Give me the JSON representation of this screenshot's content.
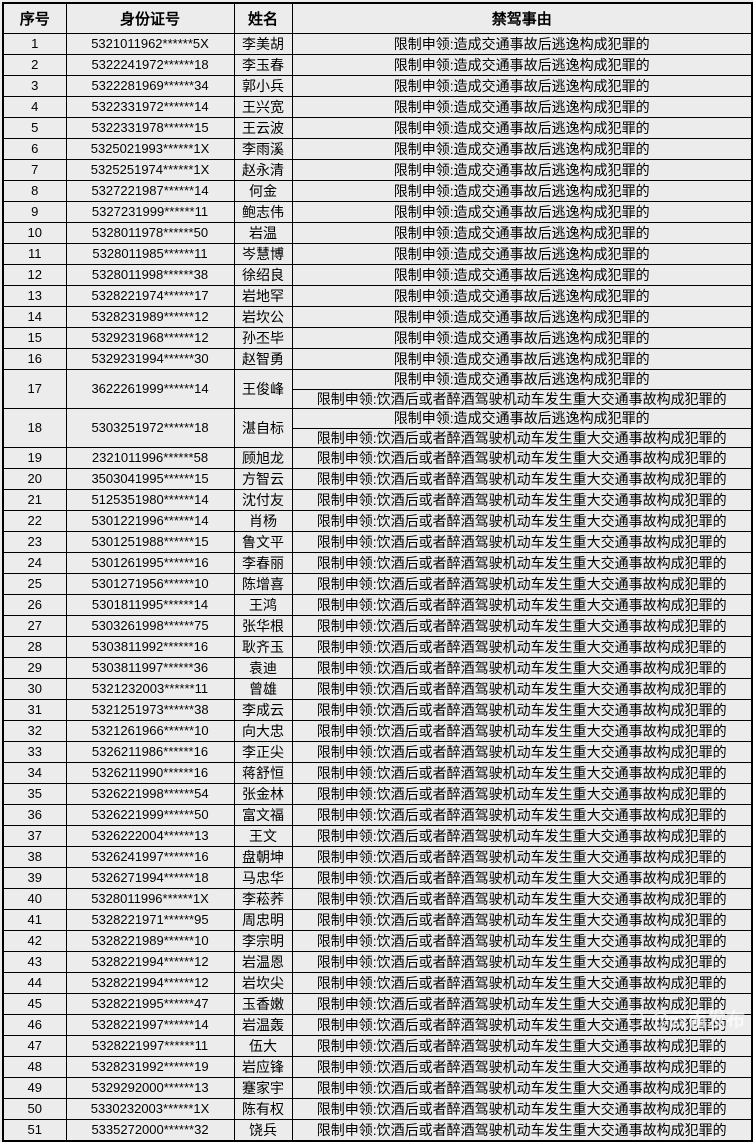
{
  "table": {
    "headers": [
      "序号",
      "身份证号",
      "姓名",
      "禁驾事由"
    ],
    "reason_types": {
      "hit_and_run": "限制申领:造成交通事故后逃逸构成犯罪的",
      "drunk_driving": "限制申领:饮酒后或者醉酒驾驶机动车发生重大交通事故构成犯罪的"
    },
    "rows": [
      {
        "index": "1",
        "id_number": "5321011962******5X",
        "name": "李美胡",
        "reasons": [
          "限制申领:造成交通事故后逃逸构成犯罪的"
        ]
      },
      {
        "index": "2",
        "id_number": "5322241972******18",
        "name": "李玉春",
        "reasons": [
          "限制申领:造成交通事故后逃逸构成犯罪的"
        ]
      },
      {
        "index": "3",
        "id_number": "5322281969******34",
        "name": "郭小兵",
        "reasons": [
          "限制申领:造成交通事故后逃逸构成犯罪的"
        ]
      },
      {
        "index": "4",
        "id_number": "5322331972******14",
        "name": "王兴宽",
        "reasons": [
          "限制申领:造成交通事故后逃逸构成犯罪的"
        ]
      },
      {
        "index": "5",
        "id_number": "5322331978******15",
        "name": "王云波",
        "reasons": [
          "限制申领:造成交通事故后逃逸构成犯罪的"
        ]
      },
      {
        "index": "6",
        "id_number": "5325021993******1X",
        "name": "李雨溪",
        "reasons": [
          "限制申领:造成交通事故后逃逸构成犯罪的"
        ]
      },
      {
        "index": "7",
        "id_number": "5325251974******1X",
        "name": "赵永清",
        "reasons": [
          "限制申领:造成交通事故后逃逸构成犯罪的"
        ]
      },
      {
        "index": "8",
        "id_number": "5327221987******14",
        "name": "何金",
        "reasons": [
          "限制申领:造成交通事故后逃逸构成犯罪的"
        ]
      },
      {
        "index": "9",
        "id_number": "5327231999******11",
        "name": "鲍志伟",
        "reasons": [
          "限制申领:造成交通事故后逃逸构成犯罪的"
        ]
      },
      {
        "index": "10",
        "id_number": "5328011978******50",
        "name": "岩温",
        "reasons": [
          "限制申领:造成交通事故后逃逸构成犯罪的"
        ]
      },
      {
        "index": "11",
        "id_number": "5328011985******11",
        "name": "岑慧博",
        "reasons": [
          "限制申领:造成交通事故后逃逸构成犯罪的"
        ]
      },
      {
        "index": "12",
        "id_number": "5328011998******38",
        "name": "徐绍良",
        "reasons": [
          "限制申领:造成交通事故后逃逸构成犯罪的"
        ]
      },
      {
        "index": "13",
        "id_number": "5328221974******17",
        "name": "岩地罕",
        "reasons": [
          "限制申领:造成交通事故后逃逸构成犯罪的"
        ]
      },
      {
        "index": "14",
        "id_number": "5328231989******12",
        "name": "岩坎公",
        "reasons": [
          "限制申领:造成交通事故后逃逸构成犯罪的"
        ]
      },
      {
        "index": "15",
        "id_number": "5329231968******12",
        "name": "孙丕毕",
        "reasons": [
          "限制申领:造成交通事故后逃逸构成犯罪的"
        ]
      },
      {
        "index": "16",
        "id_number": "5329231994******30",
        "name": "赵智勇",
        "reasons": [
          "限制申领:造成交通事故后逃逸构成犯罪的"
        ]
      },
      {
        "index": "17",
        "id_number": "3622261999******14",
        "name": "王俊峰",
        "reasons": [
          "限制申领:造成交通事故后逃逸构成犯罪的",
          "限制申领:饮酒后或者醉酒驾驶机动车发生重大交通事故构成犯罪的"
        ]
      },
      {
        "index": "18",
        "id_number": "5303251972******18",
        "name": "湛自标",
        "reasons": [
          "限制申领:造成交通事故后逃逸构成犯罪的",
          "限制申领:饮酒后或者醉酒驾驶机动车发生重大交通事故构成犯罪的"
        ]
      },
      {
        "index": "19",
        "id_number": "2321011996******58",
        "name": "顾旭龙",
        "reasons": [
          "限制申领:饮酒后或者醉酒驾驶机动车发生重大交通事故构成犯罪的"
        ]
      },
      {
        "index": "20",
        "id_number": "3503041995******15",
        "name": "方智云",
        "reasons": [
          "限制申领:饮酒后或者醉酒驾驶机动车发生重大交通事故构成犯罪的"
        ]
      },
      {
        "index": "21",
        "id_number": "5125351980******14",
        "name": "沈付友",
        "reasons": [
          "限制申领:饮酒后或者醉酒驾驶机动车发生重大交通事故构成犯罪的"
        ]
      },
      {
        "index": "22",
        "id_number": "5301221996******14",
        "name": "肖杨",
        "reasons": [
          "限制申领:饮酒后或者醉酒驾驶机动车发生重大交通事故构成犯罪的"
        ]
      },
      {
        "index": "23",
        "id_number": "5301251988******15",
        "name": "鲁文平",
        "reasons": [
          "限制申领:饮酒后或者醉酒驾驶机动车发生重大交通事故构成犯罪的"
        ]
      },
      {
        "index": "24",
        "id_number": "5301261995******16",
        "name": "李春丽",
        "reasons": [
          "限制申领:饮酒后或者醉酒驾驶机动车发生重大交通事故构成犯罪的"
        ]
      },
      {
        "index": "25",
        "id_number": "5301271956******10",
        "name": "陈增喜",
        "reasons": [
          "限制申领:饮酒后或者醉酒驾驶机动车发生重大交通事故构成犯罪的"
        ]
      },
      {
        "index": "26",
        "id_number": "5301811995******14",
        "name": "王鸿",
        "reasons": [
          "限制申领:饮酒后或者醉酒驾驶机动车发生重大交通事故构成犯罪的"
        ]
      },
      {
        "index": "27",
        "id_number": "5303261998******75",
        "name": "张华根",
        "reasons": [
          "限制申领:饮酒后或者醉酒驾驶机动车发生重大交通事故构成犯罪的"
        ]
      },
      {
        "index": "28",
        "id_number": "5303811992******16",
        "name": "耿齐玉",
        "reasons": [
          "限制申领:饮酒后或者醉酒驾驶机动车发生重大交通事故构成犯罪的"
        ]
      },
      {
        "index": "29",
        "id_number": "5303811997******36",
        "name": "袁迪",
        "reasons": [
          "限制申领:饮酒后或者醉酒驾驶机动车发生重大交通事故构成犯罪的"
        ]
      },
      {
        "index": "30",
        "id_number": "5321232003******11",
        "name": "曾雄",
        "reasons": [
          "限制申领:饮酒后或者醉酒驾驶机动车发生重大交通事故构成犯罪的"
        ]
      },
      {
        "index": "31",
        "id_number": "5321251973******38",
        "name": "李成云",
        "reasons": [
          "限制申领:饮酒后或者醉酒驾驶机动车发生重大交通事故构成犯罪的"
        ]
      },
      {
        "index": "32",
        "id_number": "5321261966******10",
        "name": "向大忠",
        "reasons": [
          "限制申领:饮酒后或者醉酒驾驶机动车发生重大交通事故构成犯罪的"
        ]
      },
      {
        "index": "33",
        "id_number": "5326211986******16",
        "name": "李正尖",
        "reasons": [
          "限制申领:饮酒后或者醉酒驾驶机动车发生重大交通事故构成犯罪的"
        ]
      },
      {
        "index": "34",
        "id_number": "5326211990******16",
        "name": "蒋舒恒",
        "reasons": [
          "限制申领:饮酒后或者醉酒驾驶机动车发生重大交通事故构成犯罪的"
        ]
      },
      {
        "index": "35",
        "id_number": "5326221998******54",
        "name": "张金林",
        "reasons": [
          "限制申领:饮酒后或者醉酒驾驶机动车发生重大交通事故构成犯罪的"
        ]
      },
      {
        "index": "36",
        "id_number": "5326221999******50",
        "name": "富文福",
        "reasons": [
          "限制申领:饮酒后或者醉酒驾驶机动车发生重大交通事故构成犯罪的"
        ]
      },
      {
        "index": "37",
        "id_number": "5326222004******13",
        "name": "王文",
        "reasons": [
          "限制申领:饮酒后或者醉酒驾驶机动车发生重大交通事故构成犯罪的"
        ]
      },
      {
        "index": "38",
        "id_number": "5326241997******16",
        "name": "盘朝坤",
        "reasons": [
          "限制申领:饮酒后或者醉酒驾驶机动车发生重大交通事故构成犯罪的"
        ]
      },
      {
        "index": "39",
        "id_number": "5326271994******18",
        "name": "马忠华",
        "reasons": [
          "限制申领:饮酒后或者醉酒驾驶机动车发生重大交通事故构成犯罪的"
        ]
      },
      {
        "index": "40",
        "id_number": "5328011996******1X",
        "name": "李菘荞",
        "reasons": [
          "限制申领:饮酒后或者醉酒驾驶机动车发生重大交通事故构成犯罪的"
        ]
      },
      {
        "index": "41",
        "id_number": "5328221971******95",
        "name": "周忠明",
        "reasons": [
          "限制申领:饮酒后或者醉酒驾驶机动车发生重大交通事故构成犯罪的"
        ]
      },
      {
        "index": "42",
        "id_number": "5328221989******10",
        "name": "李宗明",
        "reasons": [
          "限制申领:饮酒后或者醉酒驾驶机动车发生重大交通事故构成犯罪的"
        ]
      },
      {
        "index": "43",
        "id_number": "5328221994******12",
        "name": "岩温恩",
        "reasons": [
          "限制申领:饮酒后或者醉酒驾驶机动车发生重大交通事故构成犯罪的"
        ]
      },
      {
        "index": "44",
        "id_number": "5328221994******12",
        "name": "岩坎尖",
        "reasons": [
          "限制申领:饮酒后或者醉酒驾驶机动车发生重大交通事故构成犯罪的"
        ]
      },
      {
        "index": "45",
        "id_number": "5328221995******47",
        "name": "玉香嫩",
        "reasons": [
          "限制申领:饮酒后或者醉酒驾驶机动车发生重大交通事故构成犯罪的"
        ]
      },
      {
        "index": "46",
        "id_number": "5328221997******14",
        "name": "岩温轰",
        "reasons": [
          "限制申领:饮酒后或者醉酒驾驶机动车发生重大交通事故构成犯罪的"
        ]
      },
      {
        "index": "47",
        "id_number": "5328221997******11",
        "name": "伍大",
        "reasons": [
          "限制申领:饮酒后或者醉酒驾驶机动车发生重大交通事故构成犯罪的"
        ]
      },
      {
        "index": "48",
        "id_number": "5328231992******19",
        "name": "岩应锋",
        "reasons": [
          "限制申领:饮酒后或者醉酒驾驶机动车发生重大交通事故构成犯罪的"
        ]
      },
      {
        "index": "49",
        "id_number": "5329292000******13",
        "name": "蹇家宇",
        "reasons": [
          "限制申领:饮酒后或者醉酒驾驶机动车发生重大交通事故构成犯罪的"
        ]
      },
      {
        "index": "50",
        "id_number": "5330232003******1X",
        "name": "陈有权",
        "reasons": [
          "限制申领:饮酒后或者醉酒驾驶机动车发生重大交通事故构成犯罪的"
        ]
      },
      {
        "index": "51",
        "id_number": "5335272000******32",
        "name": "饶兵",
        "reasons": [
          "限制申领:饮酒后或者醉酒驾驶机动车发生重大交通事故构成犯罪的"
        ]
      }
    ]
  },
  "watermark": {
    "text": "@云南发布",
    "icon": "publisher-logo-icon"
  },
  "colors": {
    "page_background": "#ececec",
    "border": "#000000",
    "text": "#000000",
    "watermark": "rgba(255,255,255,0.62)"
  }
}
